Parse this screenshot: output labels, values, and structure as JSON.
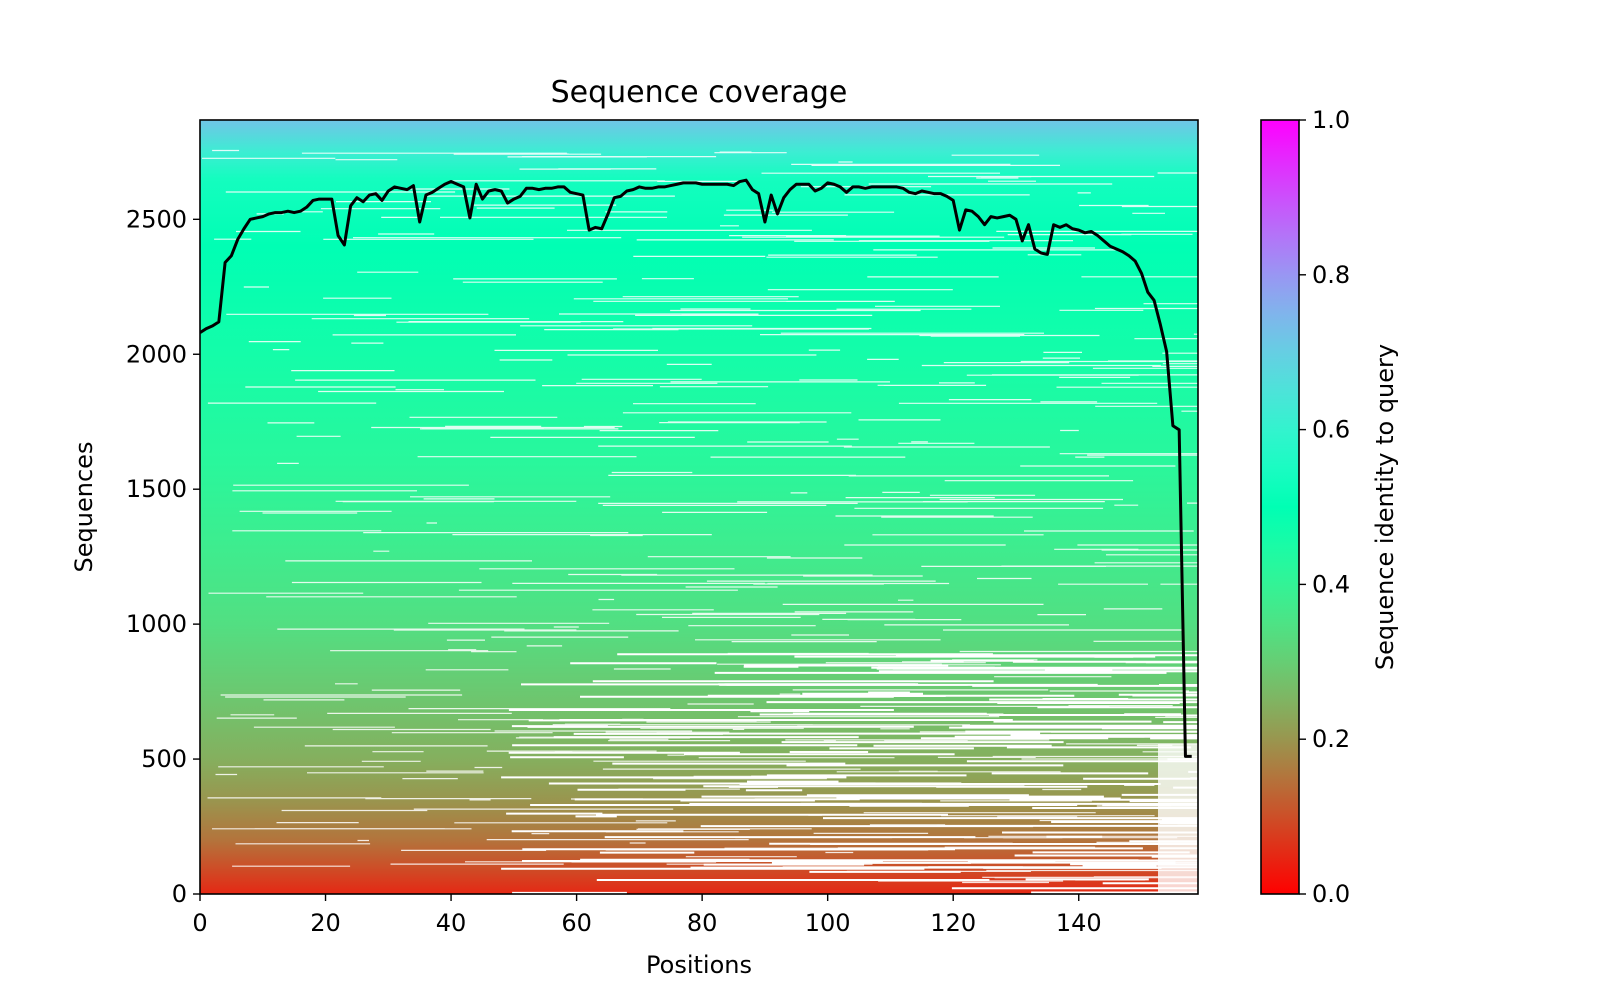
{
  "chart_data": {
    "type": "heatmap",
    "title": "Sequence coverage",
    "xlabel": "Positions",
    "ylabel": "Sequences",
    "colorbar_label": "Sequence identity to query",
    "xlim": [
      0,
      159
    ],
    "ylim": [
      0,
      2868
    ],
    "xticks": [
      0,
      20,
      40,
      60,
      80,
      100,
      120,
      140
    ],
    "yticks": [
      0,
      500,
      1000,
      1500,
      2000,
      2500
    ],
    "colorbar_range": [
      0,
      1
    ],
    "colorbar_ticks": [
      "0.0",
      "0.2",
      "0.4",
      "0.6",
      "0.8",
      "1.0"
    ],
    "colormap": "rainbow_r",
    "heatmap_identity_by_sequence": [
      {
        "seq": 0,
        "identity": 0.05
      },
      {
        "seq": 100,
        "identity": 0.1
      },
      {
        "seq": 200,
        "identity": 0.15
      },
      {
        "seq": 350,
        "identity": 0.2
      },
      {
        "seq": 500,
        "identity": 0.24
      },
      {
        "seq": 700,
        "identity": 0.28
      },
      {
        "seq": 1000,
        "identity": 0.34
      },
      {
        "seq": 1300,
        "identity": 0.38
      },
      {
        "seq": 1600,
        "identity": 0.42
      },
      {
        "seq": 2000,
        "identity": 0.46
      },
      {
        "seq": 2400,
        "identity": 0.5
      },
      {
        "seq": 2650,
        "identity": 0.54
      },
      {
        "seq": 2750,
        "identity": 0.62
      },
      {
        "seq": 2868,
        "identity": 0.72
      }
    ],
    "series": [
      {
        "type": "line",
        "color": "#000000",
        "x": [
          0,
          1,
          2,
          3,
          4,
          5,
          6,
          7,
          8,
          9,
          10,
          11,
          12,
          13,
          14,
          15,
          16,
          17,
          18,
          19,
          20,
          21,
          22,
          23,
          24,
          25,
          26,
          27,
          28,
          29,
          30,
          31,
          32,
          33,
          34,
          35,
          36,
          37,
          38,
          39,
          40,
          41,
          42,
          43,
          44,
          45,
          46,
          47,
          48,
          49,
          50,
          51,
          52,
          53,
          54,
          55,
          56,
          57,
          58,
          59,
          60,
          61,
          62,
          63,
          64,
          65,
          66,
          67,
          68,
          69,
          70,
          71,
          72,
          73,
          74,
          75,
          76,
          77,
          78,
          79,
          80,
          81,
          82,
          83,
          84,
          85,
          86,
          87,
          88,
          89,
          90,
          91,
          92,
          93,
          94,
          95,
          96,
          97,
          98,
          99,
          100,
          101,
          102,
          103,
          104,
          105,
          106,
          107,
          108,
          109,
          110,
          111,
          112,
          113,
          114,
          115,
          116,
          117,
          118,
          119,
          120,
          121,
          122,
          123,
          124,
          125,
          126,
          127,
          128,
          129,
          130,
          131,
          132,
          133,
          134,
          135,
          136,
          137,
          138,
          139,
          140,
          141,
          142,
          143,
          144,
          145,
          146,
          147,
          148,
          149,
          150,
          151,
          152,
          153,
          154,
          155,
          156,
          157,
          158
        ],
        "y": [
          2080,
          2095,
          2105,
          2120,
          2340,
          2365,
          2425,
          2465,
          2500,
          2505,
          2510,
          2520,
          2525,
          2525,
          2530,
          2525,
          2530,
          2545,
          2570,
          2575,
          2575,
          2575,
          2440,
          2405,
          2550,
          2580,
          2565,
          2590,
          2595,
          2570,
          2605,
          2620,
          2615,
          2610,
          2625,
          2490,
          2590,
          2600,
          2615,
          2630,
          2640,
          2630,
          2620,
          2505,
          2630,
          2575,
          2605,
          2610,
          2605,
          2560,
          2575,
          2585,
          2615,
          2615,
          2610,
          2615,
          2615,
          2620,
          2620,
          2600,
          2595,
          2590,
          2460,
          2470,
          2465,
          2520,
          2580,
          2585,
          2605,
          2610,
          2620,
          2615,
          2615,
          2620,
          2620,
          2625,
          2630,
          2635,
          2635,
          2635,
          2630,
          2630,
          2630,
          2630,
          2630,
          2625,
          2640,
          2645,
          2610,
          2595,
          2490,
          2590,
          2520,
          2580,
          2610,
          2630,
          2630,
          2630,
          2605,
          2615,
          2635,
          2630,
          2620,
          2600,
          2620,
          2620,
          2615,
          2620,
          2620,
          2620,
          2620,
          2620,
          2615,
          2600,
          2595,
          2605,
          2600,
          2595,
          2595,
          2585,
          2570,
          2460,
          2535,
          2530,
          2510,
          2480,
          2510,
          2505,
          2510,
          2515,
          2500,
          2420,
          2480,
          2390,
          2375,
          2370,
          2480,
          2470,
          2480,
          2465,
          2460,
          2450,
          2455,
          2440,
          2420,
          2400,
          2390,
          2380,
          2365,
          2345,
          2300,
          2230,
          2200,
          2110,
          2010,
          1735,
          1720,
          510,
          510
        ]
      }
    ]
  }
}
